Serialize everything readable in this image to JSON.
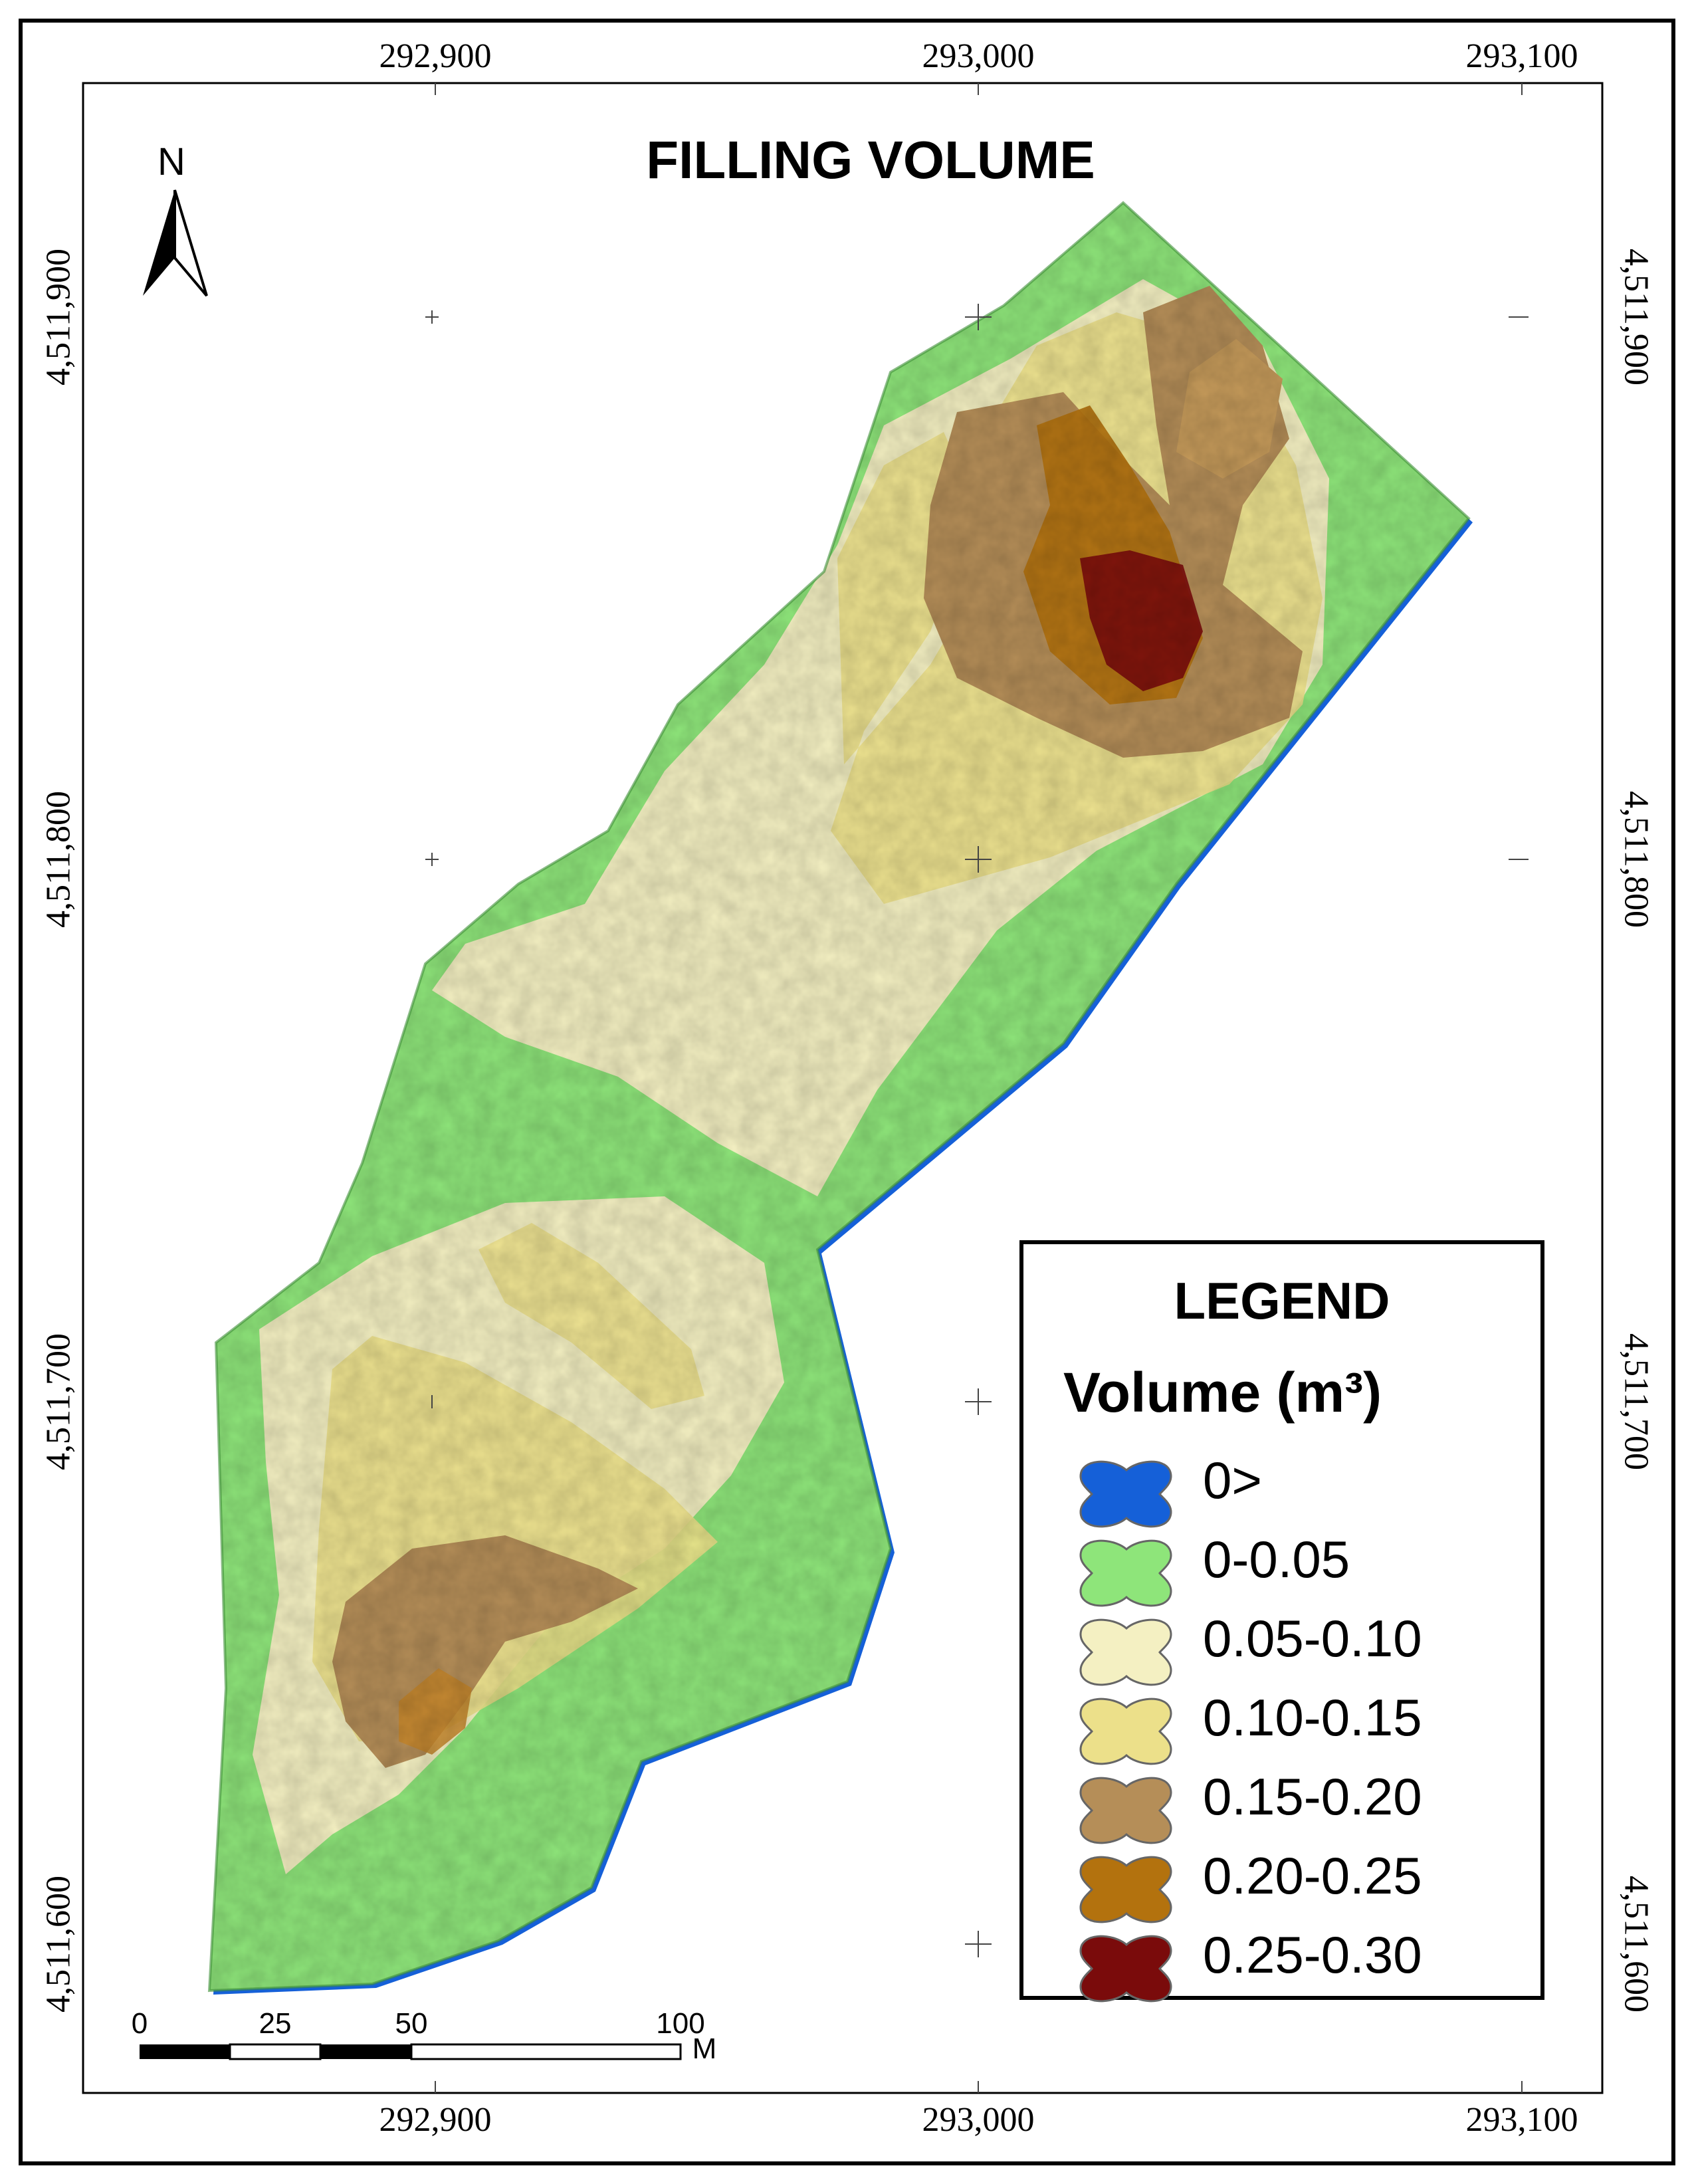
{
  "title": "FILLING VOLUME",
  "north_label": "N",
  "coordinates": {
    "x_labels": [
      "292,900",
      "293,000",
      "293,100"
    ],
    "y_labels": [
      "4,511,900",
      "4,511,800",
      "4,511,700",
      "4,511,600"
    ]
  },
  "legend": {
    "title": "LEGEND",
    "subtitle": "Volume (m³)",
    "items": [
      {
        "label": "0>",
        "color": "#1560d8"
      },
      {
        "label": "0-0.05",
        "color": "#8ee57a"
      },
      {
        "label": "0.05-0.10",
        "color": "#f4f0c2"
      },
      {
        "label": "0.10-0.15",
        "color": "#ece08a"
      },
      {
        "label": "0.15-0.20",
        "color": "#b58e58"
      },
      {
        "label": "0.20-0.25",
        "color": "#b3720e"
      },
      {
        "label": "0.25-0.30",
        "color": "#7a0b0b"
      }
    ]
  },
  "scale_bar": {
    "ticks": [
      "0",
      "25",
      "50",
      "100"
    ],
    "unit": "M"
  }
}
